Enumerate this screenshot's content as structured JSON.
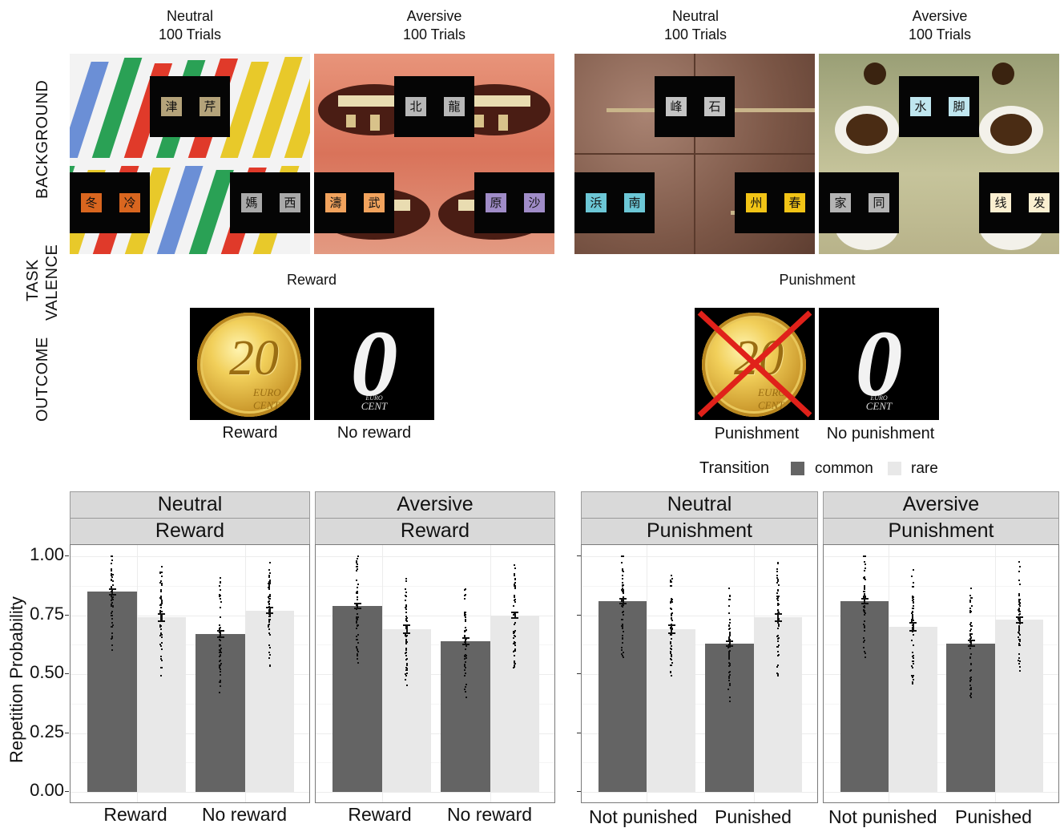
{
  "stimuli": {
    "columns": [
      {
        "condition": "Neutral",
        "trials": "100 Trials",
        "pairs": [
          [
            "津",
            "芹"
          ],
          [
            "冬",
            "冷"
          ],
          [
            "媽",
            "西"
          ]
        ],
        "colors": [
          "#b4a37a",
          "#d9661f",
          "#a9a9a9"
        ]
      },
      {
        "condition": "Aversive",
        "trials": "100 Trials",
        "pairs": [
          [
            "北",
            "龍"
          ],
          [
            "濤",
            "武"
          ],
          [
            "原",
            "沙"
          ]
        ],
        "colors": [
          "#b8b8b8",
          "#f2a35d",
          "#a08cc8"
        ]
      },
      {
        "condition": "Neutral",
        "trials": "100 Trials",
        "pairs": [
          [
            "峰",
            "石"
          ],
          [
            "浜",
            "南"
          ],
          [
            "州",
            "春"
          ]
        ],
        "colors": [
          "#c4c4c4",
          "#6cc7d6",
          "#f2c416"
        ]
      },
      {
        "condition": "Aversive",
        "trials": "100 Trials",
        "pairs": [
          [
            "水",
            "脚"
          ],
          [
            "家",
            "同"
          ],
          [
            "线",
            "发"
          ]
        ],
        "colors": [
          "#bfe6ef",
          "#b4b4b4",
          "#fbefd0"
        ]
      }
    ],
    "row_labels": {
      "background": "BACKGROUND",
      "task_valence": [
        "TASK",
        "VALENCE"
      ],
      "outcome": "OUTCOME"
    },
    "valence": {
      "left": "Reward",
      "right": "Punishment"
    },
    "outcomes": {
      "reward": "Reward",
      "no_reward": "No reward",
      "punishment": "Punishment",
      "no_punishment": "No punishment",
      "coin_value": "20",
      "coin_text": "EURO CENT",
      "zero": "0",
      "euro_small": "EURO",
      "cent_small": "CENT"
    }
  },
  "chart_data": {
    "type": "bar",
    "legend": {
      "title": "Transition",
      "entries": [
        "common",
        "rare"
      ],
      "colors": [
        "#646464",
        "#e8e8e8"
      ],
      "placement": "top-right"
    },
    "ylabel": "Repetition Probability",
    "ylim": [
      0,
      1
    ],
    "yticks": [
      "0.00",
      "0.25",
      "0.50",
      "0.75",
      "1.00"
    ],
    "grid": true,
    "panels": [
      {
        "strip_top": "Neutral",
        "strip_bottom": "Reward",
        "categories": [
          "Reward",
          "No reward"
        ],
        "series": [
          {
            "name": "common",
            "values": [
              0.85,
              0.67
            ],
            "se": [
              0.012,
              0.015
            ]
          },
          {
            "name": "rare",
            "values": [
              0.74,
              0.77
            ],
            "se": [
              0.015,
              0.012
            ]
          }
        ]
      },
      {
        "strip_top": "Aversive",
        "strip_bottom": "Reward",
        "categories": [
          "Reward",
          "No reward"
        ],
        "series": [
          {
            "name": "common",
            "values": [
              0.79,
              0.64
            ],
            "se": [
              0.01,
              0.013
            ]
          },
          {
            "name": "rare",
            "values": [
              0.69,
              0.75
            ],
            "se": [
              0.016,
              0.012
            ]
          }
        ]
      },
      {
        "strip_top": "Neutral",
        "strip_bottom": "Punishment",
        "categories": [
          "Not punished",
          "Punished"
        ],
        "series": [
          {
            "name": "common",
            "values": [
              0.81,
              0.63
            ],
            "se": [
              0.01,
              0.01
            ]
          },
          {
            "name": "rare",
            "values": [
              0.69,
              0.74
            ],
            "se": [
              0.016,
              0.014
            ]
          }
        ]
      },
      {
        "strip_top": "Aversive",
        "strip_bottom": "Punishment",
        "categories": [
          "Not punished",
          "Punished"
        ],
        "series": [
          {
            "name": "common",
            "values": [
              0.81,
              0.63
            ],
            "se": [
              0.01,
              0.012
            ]
          },
          {
            "name": "rare",
            "values": [
              0.7,
              0.73
            ],
            "se": [
              0.017,
              0.012
            ]
          }
        ]
      }
    ]
  }
}
